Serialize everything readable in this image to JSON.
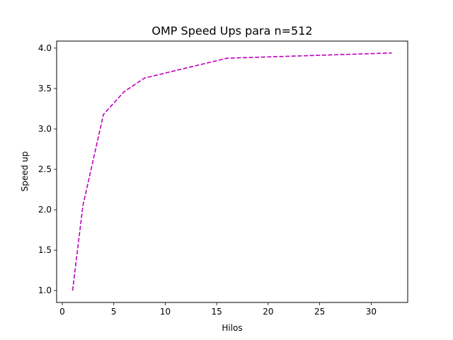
{
  "chart_data": {
    "type": "line",
    "title": "OMP Speed Ups para n=512",
    "xlabel": "Hilos",
    "ylabel": "Speed up",
    "xlim": [
      -0.55,
      33.55
    ],
    "ylim": [
      0.853,
      4.087
    ],
    "x_ticks": [
      0,
      5,
      10,
      15,
      20,
      25,
      30
    ],
    "y_ticks": [
      1.0,
      1.5,
      2.0,
      2.5,
      3.0,
      3.5,
      4.0
    ],
    "x_tick_labels": [
      "0",
      "5",
      "10",
      "15",
      "20",
      "25",
      "30"
    ],
    "y_tick_labels": [
      "1.0",
      "1.5",
      "2.0",
      "2.5",
      "3.0",
      "3.5",
      "4.0"
    ],
    "grid": false,
    "series": [
      {
        "x": [
          1,
          2,
          4,
          6,
          8,
          16,
          32
        ],
        "y": [
          1.0,
          2.05,
          3.18,
          3.46,
          3.63,
          3.875,
          3.94
        ],
        "color": "#bf00bf",
        "line_style": "dashed"
      }
    ]
  }
}
